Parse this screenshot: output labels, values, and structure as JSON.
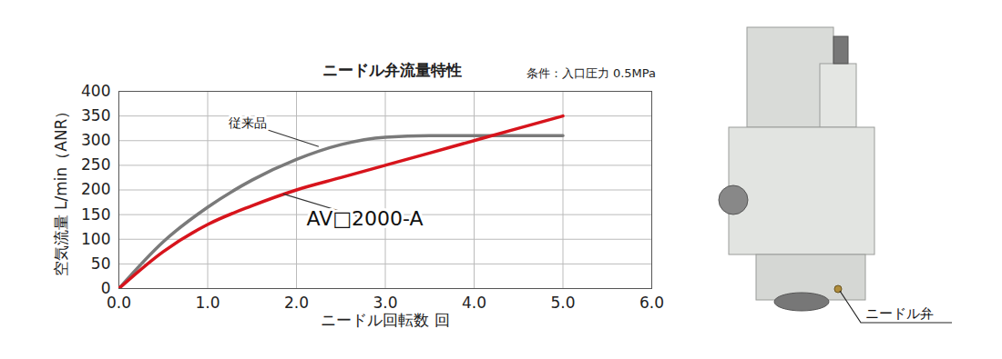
{
  "chart_data": {
    "type": "line",
    "title": "ニードル弁流量特性",
    "subtitle": "条件：入口圧力 0.5MPa",
    "x_label": "ニードル回転数 回",
    "y_label": "空気流量 L/min（ANR）",
    "x": [
      0,
      0.5,
      1,
      1.5,
      2,
      2.5,
      3,
      3.5,
      4,
      4.5,
      5
    ],
    "series": [
      {
        "name": "従来品",
        "color": "#7a7a7a",
        "values": [
          0,
          95,
          165,
          220,
          262,
          292,
          307,
          310,
          310,
          310,
          310
        ]
      },
      {
        "name": "AV□2000-A",
        "color": "#d7141c",
        "values": [
          0,
          75,
          130,
          168,
          200,
          225,
          250,
          275,
          300,
          325,
          350
        ]
      }
    ],
    "annotations": [
      {
        "text": "従来品",
        "x": 1.45,
        "y": 335,
        "point_x": 2.25,
        "point_y": 288
      },
      {
        "text": "AV□2000-A",
        "x": 2.77,
        "y": 142,
        "point_x": 1.85,
        "point_y": 192
      }
    ],
    "xlim": [
      0,
      6
    ],
    "xticks": [
      0,
      1,
      2,
      3,
      4,
      5,
      6
    ],
    "ylim": [
      0,
      400
    ],
    "yticks": [
      0,
      50,
      100,
      150,
      200,
      250,
      300,
      350,
      400
    ],
    "grid": true
  },
  "image": {
    "callout": "ニードル弁"
  }
}
